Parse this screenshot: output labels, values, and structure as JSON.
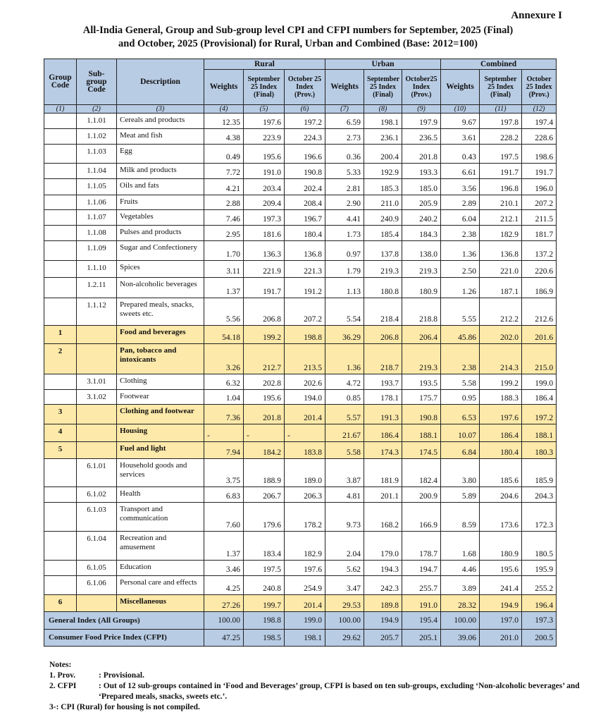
{
  "annexure": "Annexure I",
  "title_line1": "All-India General, Group and Sub-group level CPI and CFPI numbers for September, 2025 (Final)",
  "title_line2": "and October, 2025 (Provisional) for Rural, Urban and Combined (Base: 2012=100)",
  "colors": {
    "header": "#b8cce4",
    "group_row": "#fde9a9"
  },
  "header": {
    "group_code": "Group Code",
    "subgroup_code": "Sub-group Code",
    "description": "Description",
    "rural": "Rural",
    "urban": "Urban",
    "combined": "Combined",
    "sub_headers": [
      "Weights",
      "September 25 Index (Final)",
      "October 25 Index (Prov.)",
      "Weights",
      "September 25 Index (Final)",
      "October25 Index (Prov.)",
      "Weights",
      "September 25 Index (Final)",
      "October 25 Index (Prov.)"
    ],
    "column_numbers": [
      "(1)",
      "(2)",
      "(3)",
      "(4)",
      "(5)",
      "(6)",
      "(7)",
      "(8)",
      "(9)",
      "(10)",
      "(11)",
      "(12)"
    ]
  },
  "rows": [
    {
      "type": "sub",
      "group": "",
      "sub": "1.1.01",
      "desc": "Cereals and products",
      "values": [
        "12.35",
        "197.6",
        "197.2",
        "6.59",
        "198.1",
        "197.9",
        "9.67",
        "197.8",
        "197.4"
      ]
    },
    {
      "type": "sub",
      "group": "",
      "sub": "1.1.02",
      "desc": "Meat and fish",
      "values": [
        "4.38",
        "223.9",
        "224.3",
        "2.73",
        "236.1",
        "236.5",
        "3.61",
        "228.2",
        "228.6"
      ]
    },
    {
      "type": "sub",
      "group": "",
      "sub": "1.1.03",
      "desc": "Egg",
      "values": [
        "0.49",
        "195.6",
        "196.6",
        "0.36",
        "200.4",
        "201.8",
        "0.43",
        "197.5",
        "198.6"
      ]
    },
    {
      "type": "sub",
      "group": "",
      "sub": "1.1.04",
      "desc": "Milk and products",
      "values": [
        "7.72",
        "191.0",
        "190.8",
        "5.33",
        "192.9",
        "193.3",
        "6.61",
        "191.7",
        "191.7"
      ]
    },
    {
      "type": "sub",
      "group": "",
      "sub": "1.1.05",
      "desc": "Oils and fats",
      "values": [
        "4.21",
        "203.4",
        "202.4",
        "2.81",
        "185.3",
        "185.0",
        "3.56",
        "196.8",
        "196.0"
      ]
    },
    {
      "type": "sub",
      "group": "",
      "sub": "1.1.06",
      "desc": "Fruits",
      "values": [
        "2.88",
        "209.4",
        "208.4",
        "2.90",
        "211.0",
        "205.9",
        "2.89",
        "210.1",
        "207.2"
      ]
    },
    {
      "type": "sub",
      "group": "",
      "sub": "1.1.07",
      "desc": "Vegetables",
      "values": [
        "7.46",
        "197.3",
        "196.7",
        "4.41",
        "240.9",
        "240.2",
        "6.04",
        "212.1",
        "211.5"
      ]
    },
    {
      "type": "sub",
      "group": "",
      "sub": "1.1.08",
      "desc": "Pulses and products",
      "values": [
        "2.95",
        "181.6",
        "180.4",
        "1.73",
        "185.4",
        "184.3",
        "2.38",
        "182.9",
        "181.7"
      ]
    },
    {
      "type": "sub",
      "group": "",
      "sub": "1.1.09",
      "desc": "Sugar and Confectionery",
      "values": [
        "1.70",
        "136.3",
        "136.8",
        "0.97",
        "137.8",
        "138.0",
        "1.36",
        "136.8",
        "137.2"
      ]
    },
    {
      "type": "sub",
      "group": "",
      "sub": "1.1.10",
      "desc": "Spices",
      "values": [
        "3.11",
        "221.9",
        "221.3",
        "1.79",
        "219.3",
        "219.3",
        "2.50",
        "221.0",
        "220.6"
      ]
    },
    {
      "type": "sub",
      "group": "",
      "sub": "1.2.11",
      "desc": "Non-alcoholic beverages",
      "values": [
        "1.37",
        "191.7",
        "191.2",
        "1.13",
        "180.8",
        "180.9",
        "1.26",
        "187.1",
        "186.9"
      ]
    },
    {
      "type": "sub",
      "group": "",
      "sub": "1.1.12",
      "desc": "Prepared meals, snacks, sweets etc.",
      "values": [
        "5.56",
        "206.8",
        "207.2",
        "5.54",
        "218.4",
        "218.8",
        "5.55",
        "212.2",
        "212.6"
      ]
    },
    {
      "type": "grp",
      "group": "1",
      "sub": "",
      "desc": "Food and beverages",
      "values": [
        "54.18",
        "199.2",
        "198.8",
        "36.29",
        "206.8",
        "206.4",
        "45.86",
        "202.0",
        "201.6"
      ]
    },
    {
      "type": "grp",
      "group": "2",
      "sub": "",
      "desc": "Pan, tobacco and intoxicants",
      "values": [
        "3.26",
        "212.7",
        "213.5",
        "1.36",
        "218.7",
        "219.3",
        "2.38",
        "214.3",
        "215.0"
      ]
    },
    {
      "type": "sub",
      "group": "",
      "sub": "3.1.01",
      "desc": "Clothing",
      "values": [
        "6.32",
        "202.8",
        "202.6",
        "4.72",
        "193.7",
        "193.5",
        "5.58",
        "199.2",
        "199.0"
      ]
    },
    {
      "type": "sub",
      "group": "",
      "sub": "3.1.02",
      "desc": "Footwear",
      "values": [
        "1.04",
        "195.6",
        "194.0",
        "0.85",
        "178.1",
        "175.7",
        "0.95",
        "188.3",
        "186.4"
      ]
    },
    {
      "type": "grp",
      "group": "3",
      "sub": "",
      "desc": "Clothing and footwear",
      "values": [
        "7.36",
        "201.8",
        "201.4",
        "5.57",
        "191.3",
        "190.8",
        "6.53",
        "197.6",
        "197.2"
      ]
    },
    {
      "type": "grp",
      "group": "4",
      "sub": "",
      "desc": "Housing",
      "values": [
        "-",
        "-",
        "-",
        "21.67",
        "186.4",
        "188.1",
        "10.07",
        "186.4",
        "188.1"
      ]
    },
    {
      "type": "grp",
      "group": "5",
      "sub": "",
      "desc": "Fuel and light",
      "values": [
        "7.94",
        "184.2",
        "183.8",
        "5.58",
        "174.3",
        "174.5",
        "6.84",
        "180.4",
        "180.3"
      ]
    },
    {
      "type": "sub",
      "group": "",
      "sub": "6.1.01",
      "desc": "Household goods and services",
      "values": [
        "3.75",
        "188.9",
        "189.0",
        "3.87",
        "181.9",
        "182.4",
        "3.80",
        "185.6",
        "185.9"
      ]
    },
    {
      "type": "sub",
      "group": "",
      "sub": "6.1.02",
      "desc": "Health",
      "values": [
        "6.83",
        "206.7",
        "206.3",
        "4.81",
        "201.1",
        "200.9",
        "5.89",
        "204.6",
        "204.3"
      ]
    },
    {
      "type": "sub",
      "group": "",
      "sub": "6.1.03",
      "desc": "Transport and communication",
      "values": [
        "7.60",
        "179.6",
        "178.2",
        "9.73",
        "168.2",
        "166.9",
        "8.59",
        "173.6",
        "172.3"
      ]
    },
    {
      "type": "sub",
      "group": "",
      "sub": "6.1.04",
      "desc": "Recreation and amusement",
      "values": [
        "1.37",
        "183.4",
        "182.9",
        "2.04",
        "179.0",
        "178.7",
        "1.68",
        "180.9",
        "180.5"
      ]
    },
    {
      "type": "sub",
      "group": "",
      "sub": "6.1.05",
      "desc": "Education",
      "values": [
        "3.46",
        "197.5",
        "197.6",
        "5.62",
        "194.3",
        "194.7",
        "4.46",
        "195.6",
        "195.9"
      ]
    },
    {
      "type": "sub",
      "group": "",
      "sub": "6.1.06",
      "desc": "Personal care and effects",
      "values": [
        "4.25",
        "240.8",
        "254.9",
        "3.47",
        "242.3",
        "255.7",
        "3.89",
        "241.4",
        "255.2"
      ]
    },
    {
      "type": "grp",
      "group": "6",
      "sub": "",
      "desc": "Miscellaneous",
      "values": [
        "27.26",
        "199.7",
        "201.4",
        "29.53",
        "189.8",
        "191.0",
        "28.32",
        "194.9",
        "196.4"
      ]
    },
    {
      "type": "tot",
      "group": "",
      "sub": "",
      "desc": "General Index (All Groups)",
      "values": [
        "100.00",
        "198.8",
        "199.0",
        "100.00",
        "194.9",
        "195.4",
        "100.00",
        "197.0",
        "197.3"
      ]
    },
    {
      "type": "tot",
      "group": "",
      "sub": "",
      "desc": "Consumer Food Price Index (CFPI)",
      "values": [
        "47.25",
        "198.5",
        "198.1",
        "29.62",
        "205.7",
        "205.1",
        "39.06",
        "201.0",
        "200.5"
      ]
    }
  ],
  "notes": {
    "heading": "Notes:",
    "items": [
      {
        "num": "1.  Prov.",
        "text": ": Provisional."
      },
      {
        "num": "2.  CFPI",
        "text": ": Out of 12 sub-groups contained in ‘Food and Beverages’ group, CFPI is based on ten sub-groups, excluding ‘Non-alcoholic beverages’ and ‘Prepared meals, snacks, sweets etc.’."
      },
      {
        "num": "3-",
        "text": ": CPI (Rural) for housing is not compiled."
      }
    ]
  }
}
